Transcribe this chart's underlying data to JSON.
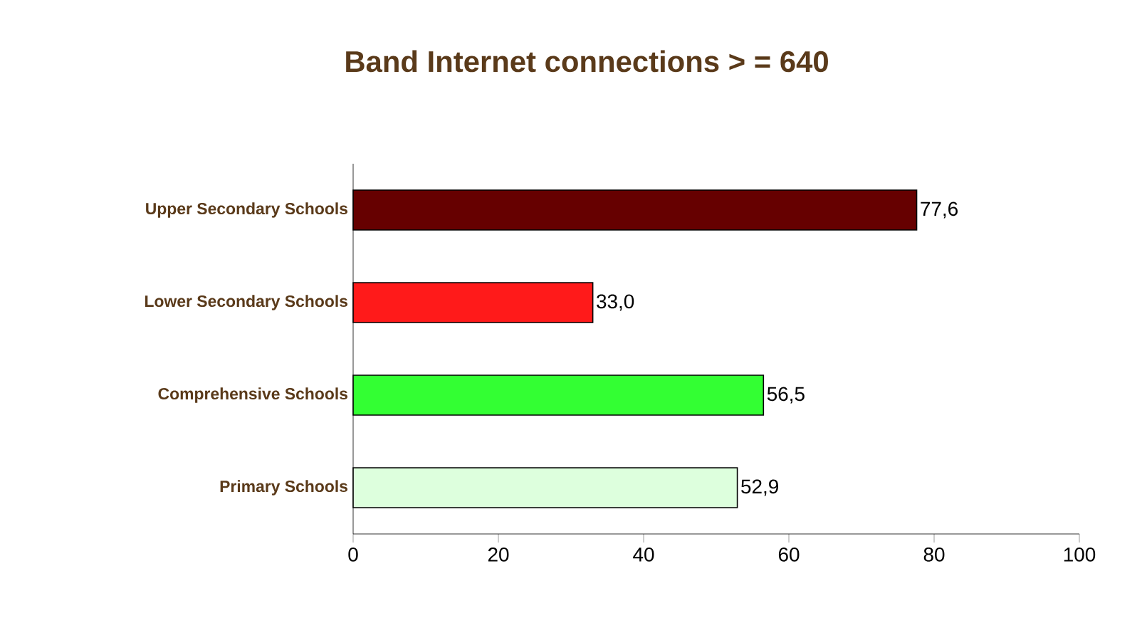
{
  "chart_data": {
    "type": "bar",
    "orientation": "horizontal",
    "title": "Band Internet connections > = 640",
    "categories": [
      "Upper Secondary Schools",
      "Lower Secondary Schools",
      "Comprehensive Schools",
      "Primary Schools"
    ],
    "values": [
      77.6,
      33.0,
      56.5,
      52.9
    ],
    "value_labels": [
      "77,6",
      "33,0",
      "56,5",
      "52,9"
    ],
    "colors": [
      "#660000",
      "#ff1a1a",
      "#33ff33",
      "#ddffdd"
    ],
    "xlim": [
      0,
      100
    ],
    "xticks": [
      0,
      20,
      40,
      60,
      80,
      100
    ],
    "grid": false
  }
}
